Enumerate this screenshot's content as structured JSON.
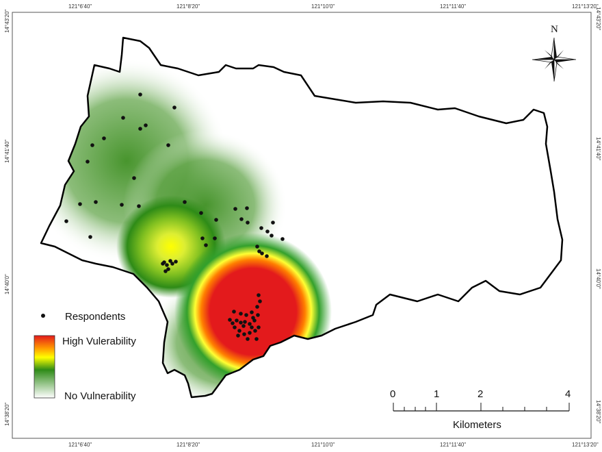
{
  "map": {
    "top_ticks": [
      "121°6'40\"",
      "121°8'20\"",
      "121°10'0\"",
      "121°11'40\"",
      "121°13'20\""
    ],
    "bottom_ticks": [
      "121°6'40\"",
      "121°8'20\"",
      "121°10'0\"",
      "121°11'40\"",
      "121°13'20\""
    ],
    "left_ticks": [
      "14°43'20\"",
      "14°41'40\"",
      "14°40'0\"",
      "14°38'20\""
    ],
    "right_ticks": [
      "14°43'20\"",
      "14°41'40\"",
      "14°40'0\"",
      "14°38'20\""
    ],
    "north_label": "N",
    "legend": {
      "respondents": "Respondents",
      "high": "High Vulerability",
      "low": "No Vulnerability"
    },
    "scale": {
      "labels": [
        "0",
        "1",
        "2",
        "4"
      ],
      "unit": "Kilometers"
    },
    "colors": {
      "high": "#e31a1c",
      "mid": "#ffff00",
      "green": "#2e8b17",
      "none": "#ffffff",
      "boundary": "#000000"
    }
  }
}
